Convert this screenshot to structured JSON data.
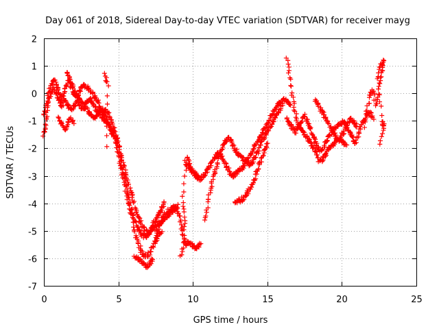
{
  "chart_data": {
    "type": "scatter",
    "title": "Day 061 of 2018, Sidereal Day-to-day VTEC variation (SDTVAR) for receiver mayg",
    "xlabel": "GPS time / hours",
    "ylabel": "SDTVAR / TECUs",
    "xlim": [
      0,
      25
    ],
    "ylim": [
      -7,
      2
    ],
    "x_ticks": [
      0,
      5,
      10,
      15,
      20,
      25
    ],
    "y_ticks": [
      -7,
      -6,
      -5,
      -4,
      -3,
      -2,
      -1,
      0,
      1,
      2
    ],
    "grid": true,
    "marker": "+",
    "color": "#ff0000",
    "series": [
      {
        "name": "s1",
        "x": [
          0.0,
          0.1,
          0.2,
          0.3,
          0.5,
          0.7,
          0.9,
          1.0,
          1.1,
          1.3,
          1.5,
          1.7,
          1.9,
          2.1,
          2.3,
          2.5,
          2.7,
          2.9,
          3.1,
          3.3,
          3.5,
          3.7,
          3.9,
          4.1,
          4.3,
          4.5,
          4.7,
          4.9,
          5.1,
          5.3,
          5.5,
          5.7,
          5.9,
          6.1,
          6.3,
          6.5,
          6.7,
          6.9,
          7.1,
          7.3,
          7.5,
          7.7,
          7.9,
          8.1
        ],
        "y": [
          -1.5,
          -1.2,
          -0.6,
          0.0,
          0.3,
          0.5,
          0.2,
          0.0,
          -0.2,
          -0.1,
          0.3,
          0.5,
          0.1,
          -0.1,
          0.0,
          0.2,
          0.3,
          0.2,
          0.1,
          0.0,
          -0.2,
          -0.4,
          -0.7,
          -0.6,
          -0.7,
          -1.0,
          -1.3,
          -1.6,
          -2.2,
          -2.8,
          -3.4,
          -3.9,
          -4.3,
          -4.6,
          -4.9,
          -5.1,
          -5.2,
          -5.2,
          -5.0,
          -4.8,
          -4.6,
          -4.4,
          -4.2,
          -4.0
        ]
      },
      {
        "name": "s2",
        "x": [
          0.0,
          0.2,
          0.4,
          0.6,
          0.8,
          1.0,
          1.2,
          1.4,
          1.6,
          1.8,
          2.0,
          2.2,
          2.4,
          2.6,
          2.8,
          3.0,
          3.2,
          3.4,
          3.6,
          3.8,
          4.0,
          4.2,
          4.4,
          4.6,
          4.8,
          5.0,
          5.2,
          5.4,
          5.6,
          5.8,
          6.0,
          6.2,
          6.4,
          6.6,
          6.8,
          7.0,
          7.2,
          7.4,
          7.6,
          7.8,
          8.0,
          8.2,
          8.4,
          8.6,
          8.8,
          9.0
        ],
        "y": [
          -0.8,
          -0.4,
          -0.1,
          0.2,
          0.0,
          -0.3,
          -0.5,
          -0.2,
          -0.4,
          -0.6,
          -0.5,
          -0.3,
          -0.4,
          -0.6,
          -0.5,
          -0.7,
          -0.8,
          -0.9,
          -0.7,
          -0.5,
          -0.7,
          -0.9,
          -1.2,
          -1.4,
          -1.6,
          -1.9,
          -2.3,
          -2.7,
          -3.1,
          -3.5,
          -3.9,
          -4.3,
          -4.6,
          -4.8,
          -5.0,
          -5.1,
          -5.0,
          -4.9,
          -4.8,
          -4.7,
          -4.6,
          -4.5,
          -4.4,
          -4.3,
          -4.2,
          -4.1
        ]
      },
      {
        "name": "s3",
        "x": [
          1.5,
          1.7,
          1.9,
          2.1,
          2.3,
          2.5,
          2.7,
          2.9,
          3.1,
          3.3,
          3.5,
          3.7,
          3.9,
          4.1,
          4.3,
          4.5,
          4.7,
          4.9,
          5.1,
          5.3,
          5.5,
          5.7,
          5.9,
          6.1,
          6.3,
          6.5,
          6.7,
          6.9,
          7.1,
          7.3,
          7.5,
          7.7,
          7.9
        ],
        "y": [
          0.8,
          0.6,
          0.3,
          0.0,
          -0.2,
          -0.3,
          -0.4,
          -0.3,
          -0.2,
          -0.4,
          -0.6,
          -0.7,
          -0.9,
          -1.0,
          -1.1,
          -1.3,
          -1.6,
          -2.0,
          -2.5,
          -3.0,
          -3.5,
          -4.0,
          -4.5,
          -5.0,
          -5.4,
          -5.7,
          -5.9,
          -5.9,
          -5.8,
          -5.6,
          -5.4,
          -5.2,
          -5.0
        ]
      },
      {
        "name": "s4",
        "x": [
          1.0,
          1.2,
          1.4,
          1.6,
          1.8,
          2.0
        ],
        "y": [
          -0.9,
          -1.1,
          -1.3,
          -1.1,
          -0.9,
          -1.1
        ]
      },
      {
        "name": "s5",
        "x": [
          4.1,
          4.3,
          4.2
        ],
        "y": [
          0.7,
          0.3,
          -1.9
        ]
      },
      {
        "name": "s6",
        "x": [
          6.1,
          6.3,
          6.5,
          6.7,
          6.9,
          7.1,
          7.3
        ],
        "y": [
          -5.9,
          -6.0,
          -6.1,
          -6.2,
          -6.3,
          -6.2,
          -6.0
        ]
      },
      {
        "name": "s7",
        "x": [
          7.5,
          7.7,
          7.9,
          8.1,
          8.3,
          8.5,
          8.7,
          8.9,
          9.1,
          9.3,
          9.5,
          9.7,
          9.9,
          10.1,
          10.3,
          10.5
        ],
        "y": [
          -5.2,
          -4.9,
          -4.6,
          -4.4,
          -4.3,
          -4.2,
          -4.1,
          -4.2,
          -4.5,
          -5.0,
          -5.5,
          -5.4,
          -5.5,
          -5.6,
          -5.6,
          -5.5
        ]
      },
      {
        "name": "s8",
        "x": [
          9.2,
          9.4,
          9.5,
          9.3,
          9.6,
          9.8,
          10.0,
          10.2,
          10.4
        ],
        "y": [
          -5.9,
          -5.4,
          -4.6,
          -3.8,
          -2.3,
          -2.6,
          -2.9,
          -3.0,
          -3.1
        ]
      },
      {
        "name": "s9",
        "x": [
          9.5,
          9.7,
          9.9,
          10.1,
          10.3,
          10.5,
          10.7,
          10.9,
          11.1,
          11.3,
          11.5,
          11.7,
          11.9,
          12.1,
          12.3,
          12.5,
          12.7,
          12.9,
          13.1,
          13.3,
          13.5,
          13.7,
          13.9,
          14.1,
          14.3,
          14.5,
          14.7,
          14.9,
          15.1,
          15.3,
          15.5,
          15.7,
          15.9,
          16.1,
          16.3,
          16.5
        ],
        "y": [
          -2.5,
          -2.7,
          -2.8,
          -2.9,
          -3.0,
          -3.1,
          -3.0,
          -2.9,
          -2.7,
          -2.5,
          -2.3,
          -2.2,
          -2.3,
          -2.5,
          -2.7,
          -2.9,
          -3.0,
          -2.9,
          -2.8,
          -2.7,
          -2.6,
          -2.4,
          -2.2,
          -2.0,
          -1.8,
          -1.6,
          -1.4,
          -1.2,
          -1.0,
          -0.8,
          -0.6,
          -0.4,
          -0.3,
          -0.2,
          -0.3,
          -0.4
        ]
      },
      {
        "name": "s10",
        "x": [
          10.8,
          11.0,
          11.2,
          11.4,
          11.6,
          11.8,
          12.0,
          12.2,
          12.4,
          12.6,
          12.8,
          13.0,
          13.2,
          13.4,
          13.6,
          13.8,
          14.0,
          14.2,
          14.4,
          14.6,
          14.8,
          15.0,
          15.2,
          15.4,
          15.6,
          15.8,
          16.0
        ],
        "y": [
          -4.6,
          -4.0,
          -3.4,
          -3.0,
          -2.6,
          -2.2,
          -1.9,
          -1.7,
          -1.6,
          -1.8,
          -2.0,
          -2.2,
          -2.3,
          -2.4,
          -2.5,
          -2.6,
          -2.5,
          -2.3,
          -2.1,
          -1.8,
          -1.6,
          -1.4,
          -1.2,
          -1.0,
          -0.8,
          -0.6,
          -0.4
        ]
      },
      {
        "name": "s11",
        "x": [
          12.8,
          13.0,
          13.2,
          13.4,
          13.6,
          13.8,
          14.0,
          14.2,
          14.4,
          14.6,
          14.8,
          15.0
        ],
        "y": [
          -4.0,
          -3.9,
          -3.9,
          -3.8,
          -3.7,
          -3.5,
          -3.3,
          -3.0,
          -2.7,
          -2.4,
          -2.1,
          -1.8
        ]
      },
      {
        "name": "s12",
        "x": [
          16.3,
          16.5,
          16.7,
          16.9,
          17.1,
          17.3,
          17.5,
          17.7,
          17.9,
          18.1,
          18.3,
          18.5,
          18.7,
          18.9,
          19.1,
          19.3,
          19.5,
          19.7,
          19.9,
          20.1,
          20.3,
          20.5,
          20.7,
          20.9,
          21.1,
          21.3,
          21.5,
          21.7,
          21.9,
          22.1
        ],
        "y": [
          -0.9,
          -1.1,
          -1.3,
          -1.4,
          -1.2,
          -1.0,
          -0.8,
          -1.0,
          -1.3,
          -1.6,
          -1.9,
          -2.1,
          -2.0,
          -1.8,
          -1.6,
          -1.4,
          -1.3,
          -1.2,
          -1.1,
          -1.0,
          -1.2,
          -1.4,
          -1.6,
          -1.8,
          -1.5,
          -1.2,
          -1.0,
          -0.8,
          -0.7,
          -0.9
        ]
      },
      {
        "name": "s13",
        "x": [
          16.3,
          16.5,
          16.7,
          16.9,
          17.1,
          17.3,
          17.5,
          17.7,
          17.9,
          18.1,
          18.3,
          18.5,
          18.7,
          18.9,
          19.1,
          19.3,
          19.5,
          19.7,
          19.9,
          20.1,
          20.3
        ],
        "y": [
          1.3,
          0.6,
          -0.2,
          -0.8,
          -1.2,
          -1.3,
          -1.5,
          -1.6,
          -1.8,
          -2.0,
          -2.2,
          -2.5,
          -2.4,
          -2.2,
          -2.0,
          -1.9,
          -1.8,
          -1.7,
          -1.7,
          -1.8,
          -1.9
        ]
      },
      {
        "name": "s14",
        "x": [
          18.2,
          18.4,
          18.6,
          18.8,
          19.0,
          19.2,
          19.4,
          19.6,
          19.8,
          20.0,
          20.2,
          20.4,
          20.6,
          20.8,
          21.0
        ],
        "y": [
          -0.2,
          -0.4,
          -0.6,
          -0.8,
          -1.0,
          -1.2,
          -1.4,
          -1.6,
          -1.7,
          -1.5,
          -1.3,
          -1.1,
          -0.9,
          -1.0,
          -1.2
        ]
      },
      {
        "name": "s15",
        "x": [
          21.5,
          21.7,
          21.9,
          22.1,
          22.3,
          22.5,
          22.7,
          22.8,
          22.6,
          22.4,
          22.7,
          22.8,
          22.6
        ],
        "y": [
          -1.2,
          -0.6,
          0.0,
          0.1,
          -0.5,
          0.3,
          0.8,
          1.2,
          1.0,
          0.5,
          -1.0,
          -1.2,
          -1.8
        ]
      }
    ]
  }
}
